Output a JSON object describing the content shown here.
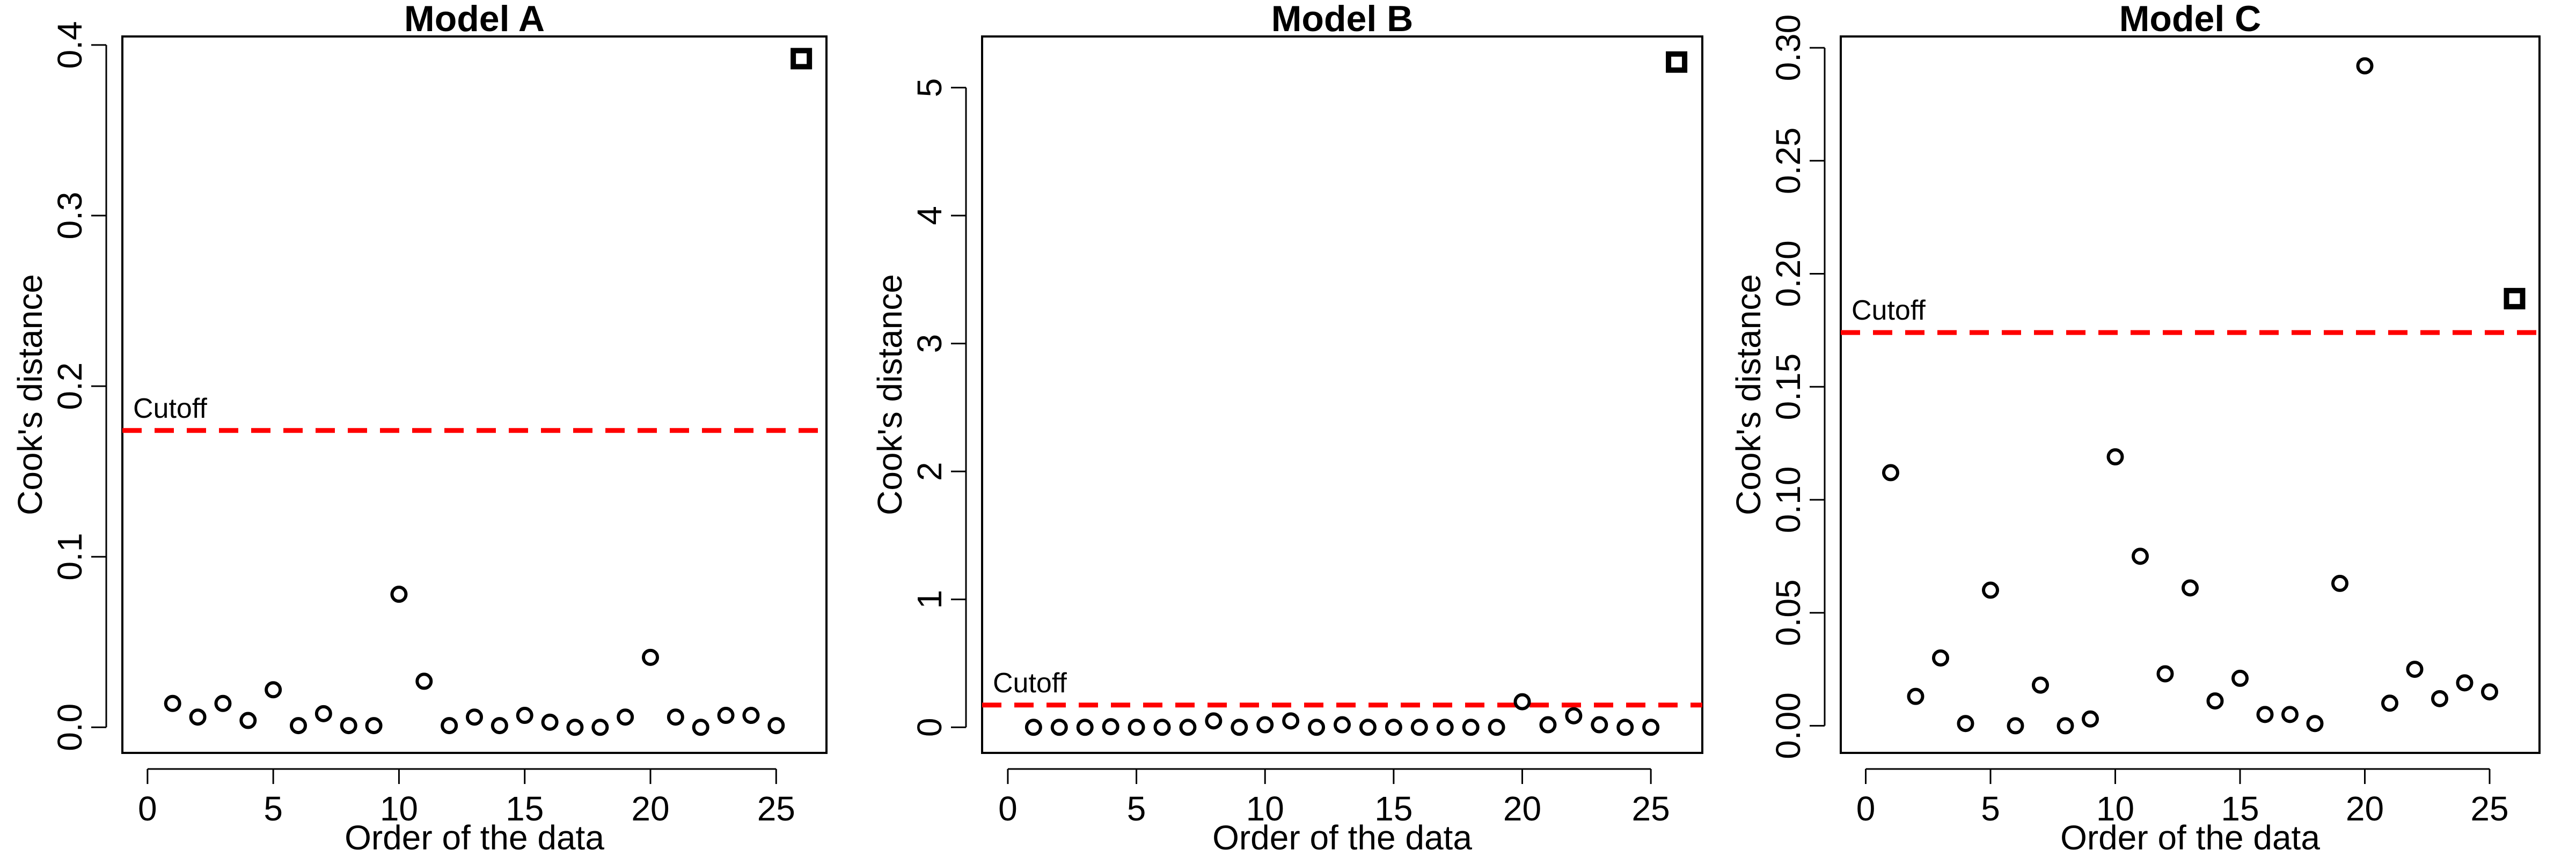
{
  "chart_data": [
    {
      "type": "scatter",
      "title": "Model A",
      "xlabel": "Order of the data",
      "ylabel": "Cook's distance",
      "xlim": [
        -1,
        27
      ],
      "ylim": [
        -0.015,
        0.405
      ],
      "xticks": [
        0,
        5,
        10,
        15,
        20,
        25
      ],
      "yticks": [
        0.0,
        0.1,
        0.2,
        0.3,
        0.4
      ],
      "ytick_labels": [
        "0.0",
        "0.1",
        "0.2",
        "0.3",
        "0.4"
      ],
      "cutoff": {
        "label": "Cutoff",
        "value": 0.174,
        "color": "#ff0000"
      },
      "points": {
        "x": [
          1,
          2,
          3,
          4,
          5,
          6,
          7,
          8,
          9,
          10,
          11,
          12,
          13,
          14,
          15,
          16,
          17,
          18,
          19,
          20,
          21,
          22,
          23,
          24,
          25
        ],
        "y": [
          0.014,
          0.006,
          0.014,
          0.004,
          0.022,
          0.001,
          0.008,
          0.001,
          0.001,
          0.078,
          0.027,
          0.001,
          0.006,
          0.001,
          0.007,
          0.003,
          0.0,
          0.0,
          0.006,
          0.041,
          0.006,
          0.0,
          0.007,
          0.007,
          0.001
        ]
      },
      "highlight": {
        "x": 26,
        "y": 0.392,
        "marker": "square"
      }
    },
    {
      "type": "scatter",
      "title": "Model B",
      "xlabel": "Order of the data",
      "ylabel": "Cook's distance",
      "xlim": [
        -1,
        27
      ],
      "ylim": [
        -0.2,
        5.4
      ],
      "xticks": [
        0,
        5,
        10,
        15,
        20,
        25
      ],
      "yticks": [
        0,
        1,
        2,
        3,
        4,
        5
      ],
      "ytick_labels": [
        "0",
        "1",
        "2",
        "3",
        "4",
        "5"
      ],
      "cutoff": {
        "label": "Cutoff",
        "value": 0.174,
        "color": "#ff0000"
      },
      "points": {
        "x": [
          1,
          2,
          3,
          4,
          5,
          6,
          7,
          8,
          9,
          10,
          11,
          12,
          13,
          14,
          15,
          16,
          17,
          18,
          19,
          20,
          21,
          22,
          23,
          24,
          25
        ],
        "y": [
          0.0,
          0.0,
          0.0,
          0.005,
          0.0,
          0.0,
          0.0,
          0.05,
          0.0,
          0.02,
          0.05,
          0.0,
          0.02,
          0.0,
          0.0,
          0.0,
          0.0,
          0.0,
          0.0,
          0.2,
          0.02,
          0.09,
          0.02,
          0.0,
          0.0
        ]
      },
      "highlight": {
        "x": 26,
        "y": 5.2,
        "marker": "square"
      }
    },
    {
      "type": "scatter",
      "title": "Model C",
      "xlabel": "Order of the data",
      "ylabel": "Cook's distance",
      "xlim": [
        -1,
        27
      ],
      "ylim": [
        -0.012,
        0.305
      ],
      "xticks": [
        0,
        5,
        10,
        15,
        20,
        25
      ],
      "yticks": [
        0.0,
        0.05,
        0.1,
        0.15,
        0.2,
        0.25,
        0.3
      ],
      "ytick_labels": [
        "0.00",
        "0.05",
        "0.10",
        "0.15",
        "0.20",
        "0.25",
        "0.30"
      ],
      "cutoff": {
        "label": "Cutoff",
        "value": 0.174,
        "color": "#ff0000"
      },
      "points": {
        "x": [
          1,
          2,
          3,
          4,
          5,
          6,
          7,
          8,
          9,
          10,
          11,
          12,
          13,
          14,
          15,
          16,
          17,
          18,
          19,
          20,
          21,
          22,
          23,
          24,
          25
        ],
        "y": [
          0.112,
          0.013,
          0.03,
          0.001,
          0.06,
          0.0,
          0.018,
          0.0,
          0.003,
          0.119,
          0.075,
          0.023,
          0.061,
          0.011,
          0.021,
          0.005,
          0.005,
          0.001,
          0.063,
          0.292,
          0.01,
          0.025,
          0.012,
          0.019,
          0.015
        ]
      },
      "highlight": {
        "x": 26,
        "y": 0.189,
        "marker": "square"
      }
    }
  ]
}
